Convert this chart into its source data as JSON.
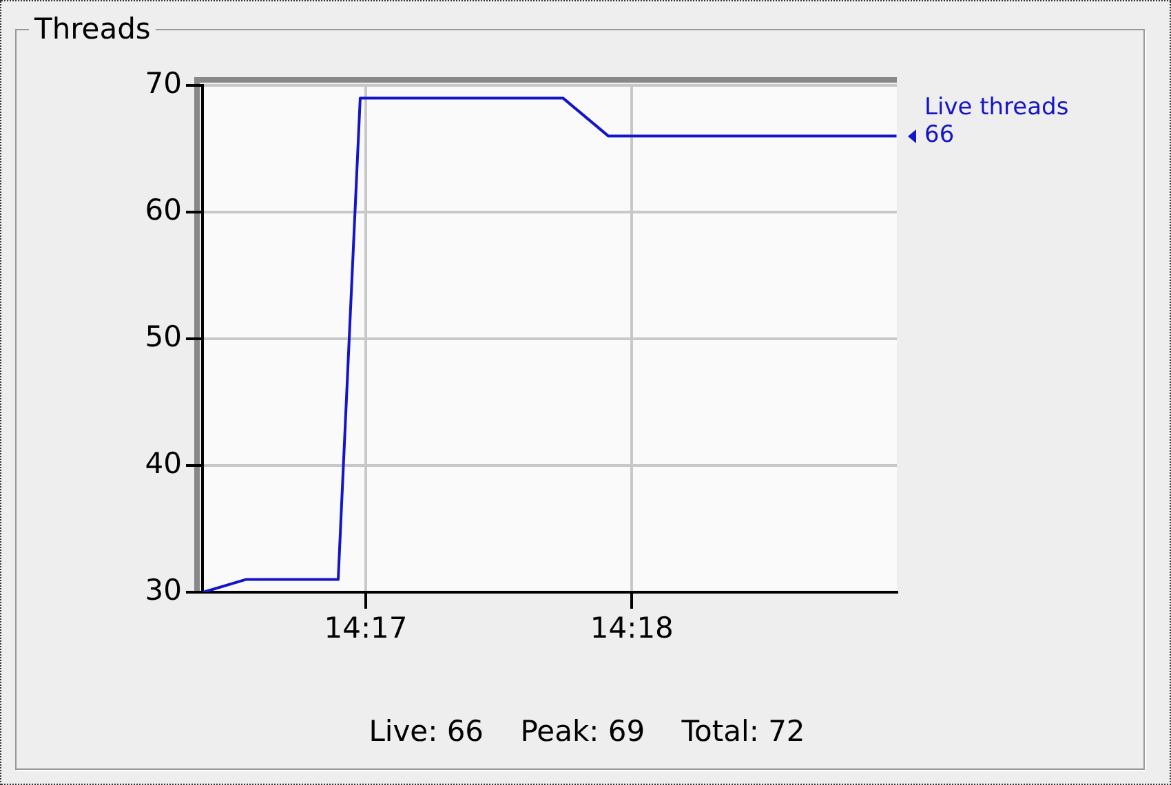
{
  "chart_data": {
    "type": "line",
    "title": "Threads",
    "x": [
      14.27315,
      14.27581,
      14.2816,
      14.28298,
      14.29568,
      14.29853,
      14.31658
    ],
    "series": [
      {
        "name": "Live threads",
        "color": "#1414c8",
        "values": [
          30,
          31,
          31,
          69,
          69,
          66,
          66
        ],
        "value_labels": [
          null,
          null,
          null,
          null,
          null,
          null,
          "66"
        ]
      }
    ],
    "xlim": [
      14.2731,
      14.3166
    ],
    "xticks": [
      {
        "value": 14.28333,
        "label": "14:17"
      },
      {
        "value": 14.3,
        "label": "14:18"
      }
    ],
    "ylim": [
      30,
      70
    ],
    "yticks": [
      30,
      40,
      50,
      60,
      70
    ],
    "grid": true,
    "legend": false,
    "marker": "none",
    "line_style": "solid",
    "annotations": [
      "Live: 66    Peak: 69    Total: 72"
    ]
  }
}
